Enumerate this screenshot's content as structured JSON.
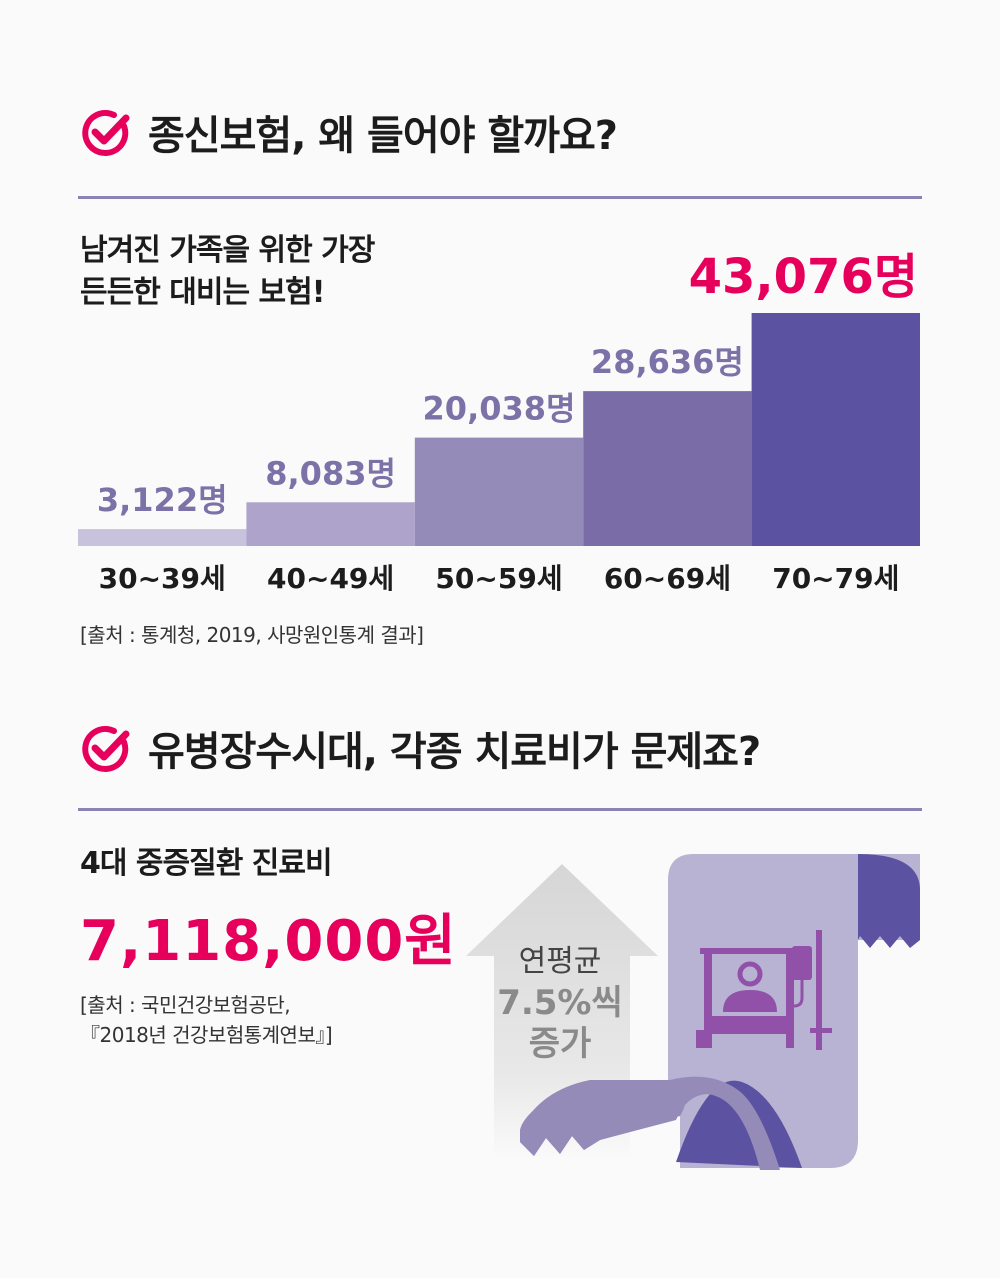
{
  "section1": {
    "title": "종신보험, 왜 들어야 할까요?",
    "subtitle_line1": "남겨진 가족을 위한 가장",
    "subtitle_line2": "든든한 대비는 보험!",
    "source": "[출처 : 통계청, 2019, 사망원인통계 결과]"
  },
  "chart_data": {
    "type": "bar",
    "title": "",
    "xlabel": "",
    "ylabel": "",
    "categories": [
      "30~39세",
      "40~49세",
      "50~59세",
      "60~69세",
      "70~79세"
    ],
    "values": [
      3122,
      8083,
      20038,
      28636,
      43076
    ],
    "value_labels": [
      "3,122명",
      "8,083명",
      "20,038명",
      "28,636명",
      "43,076명"
    ],
    "ylim": [
      0,
      43076
    ],
    "grid": false,
    "legend": "none",
    "colors": [
      "#c9c2dd",
      "#ada3cb",
      "#958bb9",
      "#7a6da7",
      "#5b52a1"
    ],
    "label_colors": [
      "#7c72a8",
      "#7c72a8",
      "#7c72a8",
      "#7c72a8",
      "#e6005c"
    ]
  },
  "section2": {
    "title": "유병장수시대, 각종 치료비가 문제죠?",
    "cost_label": "4대 중증질환 진료비",
    "cost_value": "7,118,000원",
    "source_line1": "[출처 : 국민건강보험공단,",
    "source_line2": "『2018년 건강보험통계연보』]",
    "arrow_line1": "연평균",
    "arrow_line2": "7.5%씩",
    "arrow_line3": "증가"
  },
  "colors": {
    "accent": "#e6005c",
    "rule": "#8c82b4",
    "scroll_light": "#b8b3d2",
    "scroll_mid": "#958bb9",
    "scroll_dark": "#5b52a1",
    "icon_purple": "#9251a8",
    "arrow_gray": "#dcdcdc",
    "arrow_text": "#8a8a8a"
  },
  "icons": {
    "check": "check-circle-icon",
    "patient": "hospital-bed-iv-icon"
  }
}
